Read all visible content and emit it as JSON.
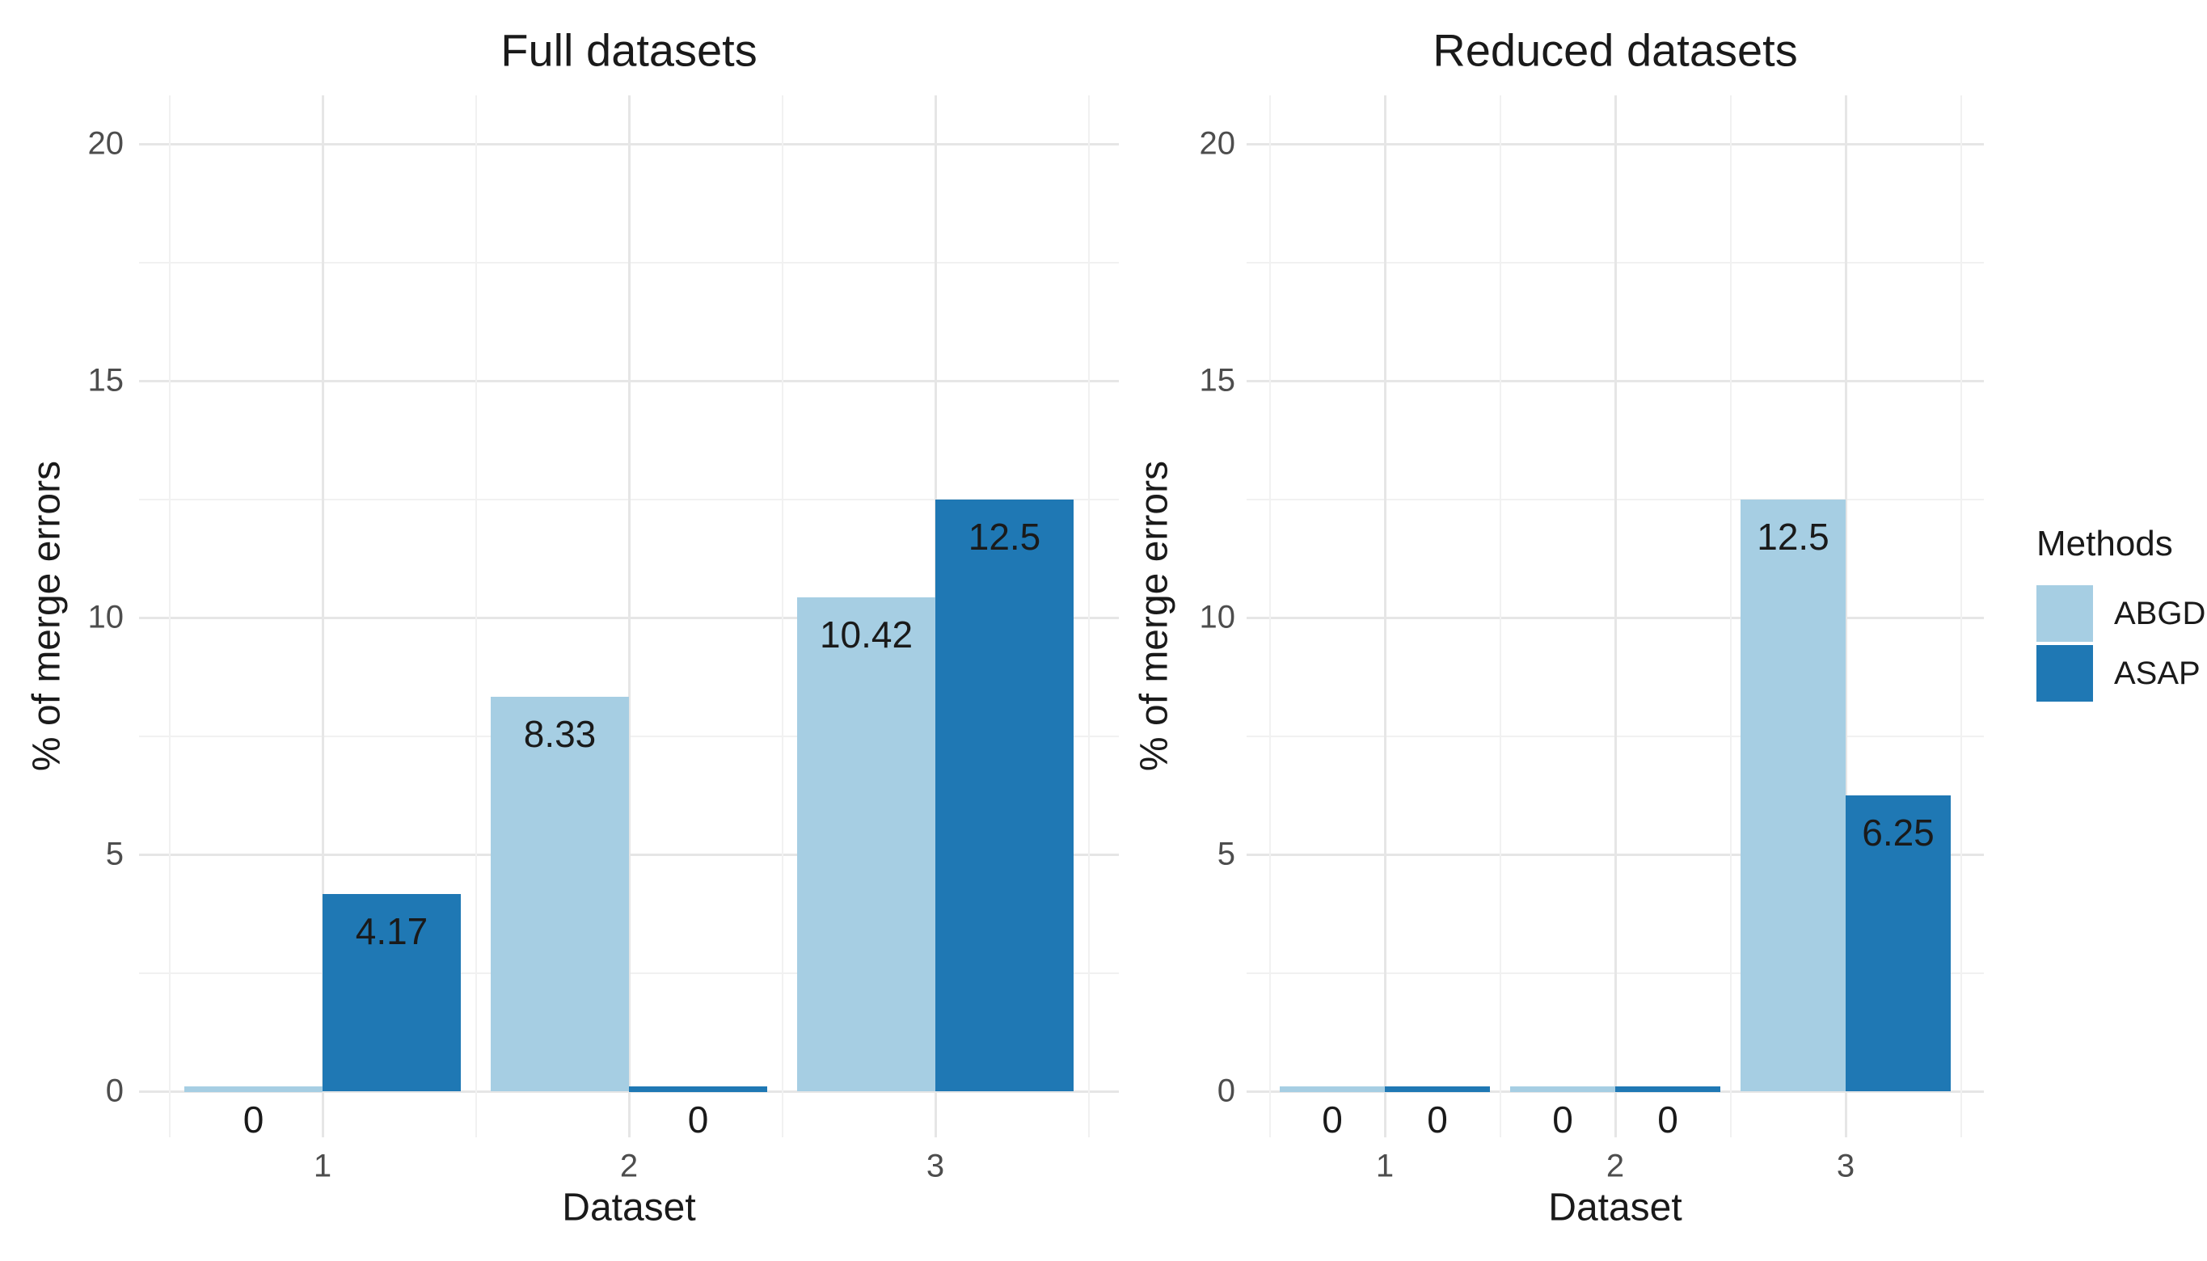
{
  "legend": {
    "title": "Methods",
    "items": [
      {
        "label": "ABGD",
        "color": "#A6CEE3"
      },
      {
        "label": "ASAP",
        "color": "#1F78B4"
      }
    ]
  },
  "colors": {
    "abgd": "#A6CEE3",
    "asap": "#1F78B4",
    "grid_major": "#e6e6e6",
    "grid_minor": "#f1f1f1",
    "tick_text": "#4d4d4d",
    "text": "#1a1a1a",
    "background": "#ffffff"
  },
  "chart_data": [
    {
      "type": "bar",
      "title": "Full datasets",
      "xlabel": "Dataset",
      "ylabel": "% of merge errors",
      "categories": [
        "1",
        "2",
        "3"
      ],
      "series": [
        {
          "name": "ABGD",
          "values": [
            0,
            8.33,
            10.42
          ],
          "labels": [
            "0",
            "8.33",
            "10.42"
          ]
        },
        {
          "name": "ASAP",
          "values": [
            4.17,
            0,
            12.5
          ],
          "labels": [
            "4.17",
            "0",
            "12.5"
          ]
        }
      ],
      "ylim": [
        0,
        20
      ],
      "yticks": [
        0,
        5,
        10,
        15,
        20
      ],
      "yticks_minor": [
        2.5,
        7.5,
        12.5,
        17.5
      ],
      "grid": "major and minor, light gray",
      "legend_position": "right (shared)"
    },
    {
      "type": "bar",
      "title": "Reduced datasets",
      "xlabel": "Dataset",
      "ylabel": "% of merge errors",
      "categories": [
        "1",
        "2",
        "3"
      ],
      "series": [
        {
          "name": "ABGD",
          "values": [
            0,
            0,
            12.5
          ],
          "labels": [
            "0",
            "0",
            "12.5"
          ]
        },
        {
          "name": "ASAP",
          "values": [
            0,
            0,
            6.25
          ],
          "labels": [
            "0",
            "0",
            "6.25"
          ]
        }
      ],
      "ylim": [
        0,
        20
      ],
      "yticks": [
        0,
        5,
        10,
        15,
        20
      ],
      "yticks_minor": [
        2.5,
        7.5,
        12.5,
        17.5
      ],
      "grid": "major and minor, light gray",
      "legend_position": "right (shared)"
    }
  ]
}
